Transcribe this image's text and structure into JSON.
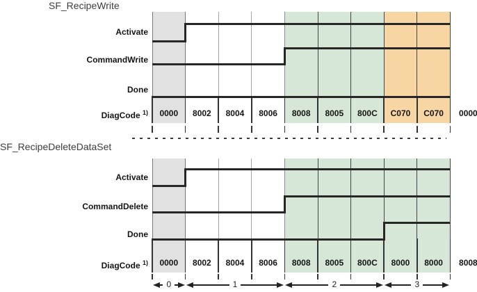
{
  "colors": {
    "phase0_bg": "#e1e1e1",
    "active_bg": "#d7e7d7",
    "error_bg": "#f8d6a4",
    "signal_line": "#262626",
    "grid_light": "#a3a3a3",
    "grid_dark": "#454545",
    "cell_border": "#333333",
    "text": "#141414"
  },
  "charts": [
    {
      "title": "SF_RecipeWrite",
      "signals": [
        {
          "label": "Activate",
          "rise_at_boundary": 1
        },
        {
          "label": "CommandWrite",
          "rise_at_boundary": 4
        },
        {
          "label": "Done",
          "rise_at_boundary": null
        }
      ],
      "diagcode": {
        "label": "DiagCode",
        "sup": "1)",
        "cells": [
          "0000",
          "8002",
          "8004",
          "8006",
          "8008",
          "8005",
          "800C",
          "C070",
          "C070"
        ],
        "cell_bg": [
          "gray",
          "white",
          "white",
          "white",
          "green",
          "green",
          "green",
          "orange",
          "orange"
        ],
        "after_value": "0000"
      }
    },
    {
      "title": "SF_RecipeDeleteDataSet",
      "signals": [
        {
          "label": "Activate",
          "rise_at_boundary": 1
        },
        {
          "label": "CommandDelete",
          "rise_at_boundary": 4
        },
        {
          "label": "Done",
          "rise_at_boundary": 7
        }
      ],
      "diagcode": {
        "label": "DiagCode",
        "sup": "1)",
        "cells": [
          "0000",
          "8002",
          "8004",
          "8006",
          "8008",
          "8005",
          "800C",
          "8000",
          "8000"
        ],
        "cell_bg": [
          "gray",
          "white",
          "white",
          "white",
          "green",
          "green",
          "green",
          "green",
          "green"
        ],
        "after_value": "8008"
      }
    }
  ],
  "phases": [
    {
      "label": "0",
      "from": 0,
      "to": 1
    },
    {
      "label": "1",
      "from": 1,
      "to": 4
    },
    {
      "label": "2",
      "from": 4,
      "to": 7
    },
    {
      "label": "3",
      "from": 7,
      "to": 9
    }
  ]
}
